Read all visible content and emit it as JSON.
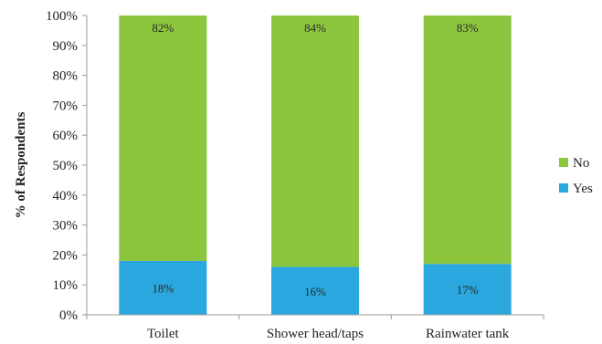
{
  "chart_data": {
    "type": "bar",
    "stacked": true,
    "percent_stacked": true,
    "categories": [
      "Toilet",
      "Shower head/taps",
      "Rainwater tank"
    ],
    "series": [
      {
        "name": "Yes",
        "values": [
          18,
          16,
          17
        ],
        "labels": [
          "18%",
          "16%",
          "17%"
        ],
        "color": "#29a7de"
      },
      {
        "name": "No",
        "values": [
          82,
          84,
          83
        ],
        "labels": [
          "82%",
          "84%",
          "83%"
        ],
        "color": "#8cc63f"
      }
    ],
    "ylabel": "% of Respondents",
    "xlabel": "",
    "ylim": [
      0,
      100
    ],
    "yticks": [
      "0%",
      "10%",
      "20%",
      "30%",
      "40%",
      "50%",
      "60%",
      "70%",
      "80%",
      "90%",
      "100%"
    ],
    "grid": false,
    "legend_position": "right"
  }
}
